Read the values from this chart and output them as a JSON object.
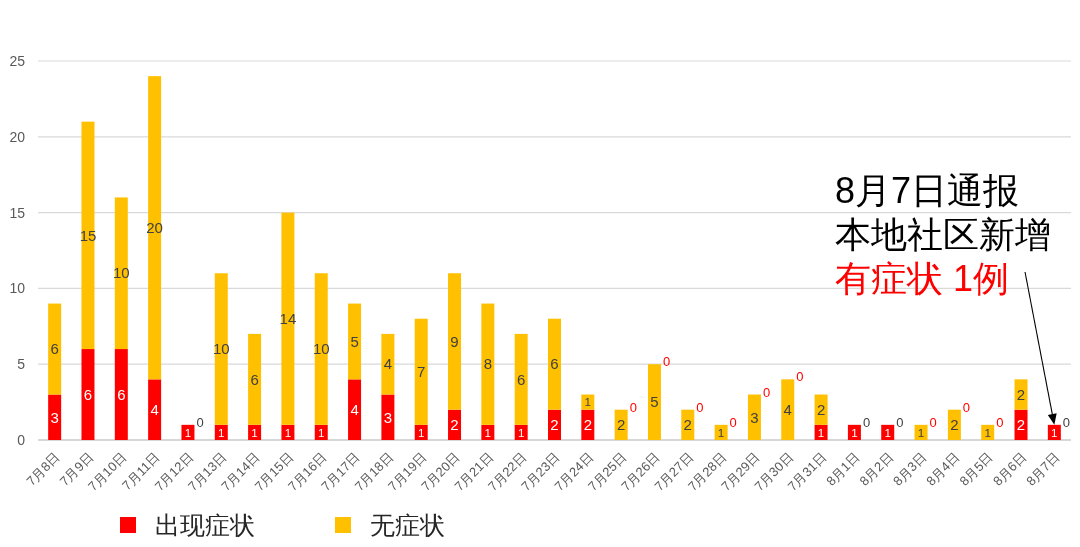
{
  "chart_data": {
    "type": "bar",
    "stacked": true,
    "categories": [
      "7月8日",
      "7月9日",
      "7月10日",
      "7月11日",
      "7月12日",
      "7月13日",
      "7月14日",
      "7月15日",
      "7月16日",
      "7月17日",
      "7月18日",
      "7月19日",
      "7月20日",
      "7月21日",
      "7月22日",
      "7月23日",
      "7月24日",
      "7月25日",
      "7月26日",
      "7月27日",
      "7月28日",
      "7月29日",
      "7月30日",
      "7月31日",
      "8月1日",
      "8月2日",
      "8月3日",
      "8月4日",
      "8月5日",
      "8月6日",
      "8月7日"
    ],
    "series": [
      {
        "name": "出现症状",
        "color": "#ff0000",
        "values": [
          3,
          6,
          6,
          4,
          1,
          1,
          1,
          1,
          1,
          4,
          3,
          1,
          2,
          1,
          1,
          2,
          2,
          0,
          0,
          0,
          0,
          0,
          0,
          1,
          1,
          1,
          0,
          0,
          0,
          2,
          1
        ]
      },
      {
        "name": "无症状",
        "color": "#ffc000",
        "values": [
          6,
          15,
          10,
          20,
          0,
          10,
          6,
          14,
          10,
          5,
          4,
          7,
          9,
          8,
          6,
          6,
          1,
          2,
          5,
          2,
          1,
          3,
          4,
          2,
          0,
          0,
          1,
          2,
          1,
          2,
          0
        ]
      }
    ],
    "ylim": [
      0,
      25
    ],
    "yticks": [
      0,
      5,
      10,
      15,
      20,
      25
    ],
    "grid": "y",
    "legend": "bottom",
    "data_labels": true,
    "annotations": [
      "8月7日通报",
      "本地社区新增",
      {
        "text": "有症状 1例",
        "x": "8月7日",
        "y": 1
      }
    ]
  }
}
